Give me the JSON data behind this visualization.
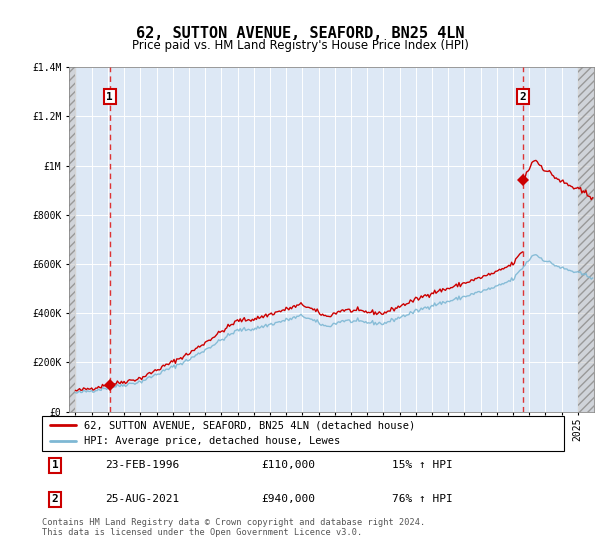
{
  "title": "62, SUTTON AVENUE, SEAFORD, BN25 4LN",
  "subtitle": "Price paid vs. HM Land Registry's House Price Index (HPI)",
  "legend_label1": "62, SUTTON AVENUE, SEAFORD, BN25 4LN (detached house)",
  "legend_label2": "HPI: Average price, detached house, Lewes",
  "transaction1_date": "23-FEB-1996",
  "transaction1_price": 110000,
  "transaction1_hpi_pct": "15%",
  "transaction1_label": "15% ↑ HPI",
  "transaction2_date": "25-AUG-2021",
  "transaction2_price": 940000,
  "transaction2_hpi_pct": "76%",
  "transaction2_label": "76% ↑ HPI",
  "footer": "Contains HM Land Registry data © Crown copyright and database right 2024.\nThis data is licensed under the Open Government Licence v3.0.",
  "hpi_color": "#7eb8d4",
  "price_color": "#cc0000",
  "dashed_line_color": "#dd3333",
  "background_plot": "#dde8f5",
  "ylim": [
    0,
    1400000
  ],
  "yticks": [
    0,
    200000,
    400000,
    600000,
    800000,
    1000000,
    1200000,
    1400000
  ],
  "ytick_labels": [
    "£0",
    "£200K",
    "£400K",
    "£600K",
    "£800K",
    "£1M",
    "£1.2M",
    "£1.4M"
  ],
  "t1_year": 1996.12,
  "t2_year": 2021.62,
  "hpi_seed": 42,
  "figsize": [
    6.0,
    5.6
  ],
  "dpi": 100
}
